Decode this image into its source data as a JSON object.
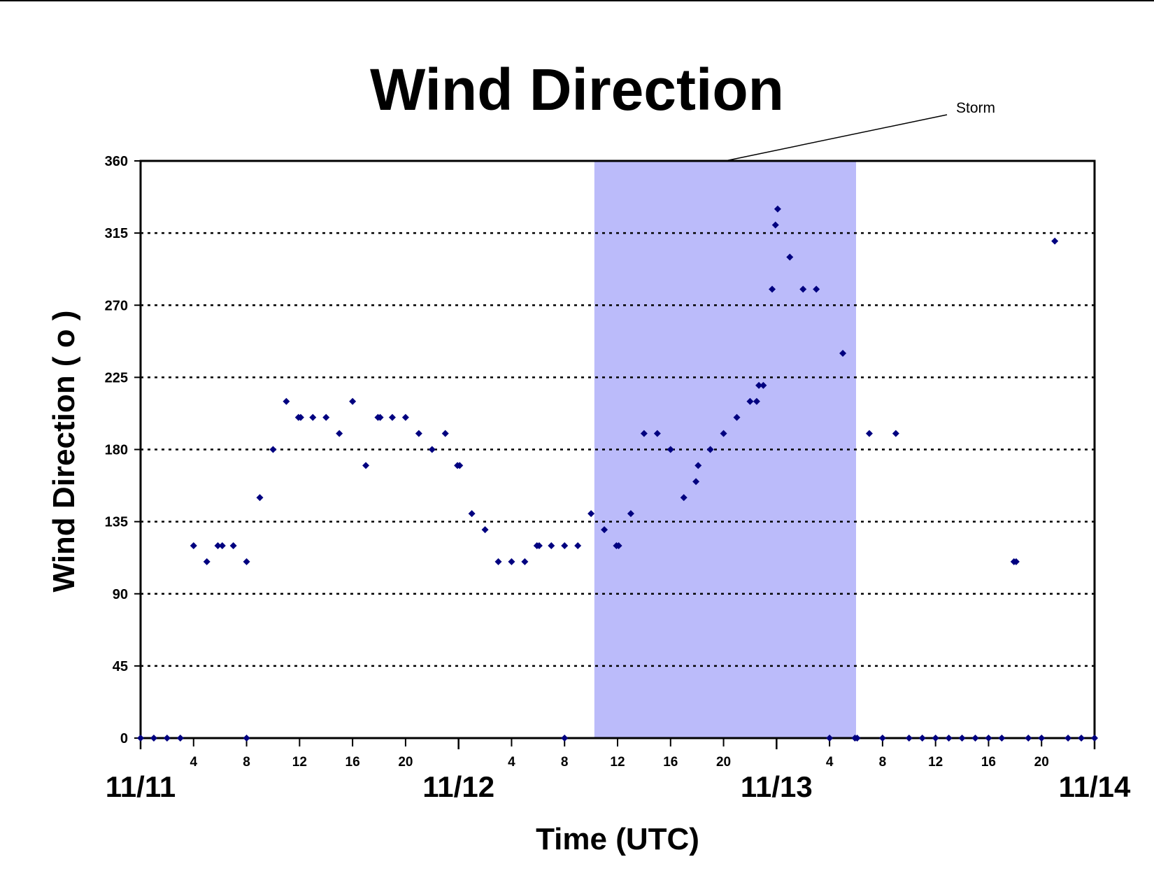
{
  "chart_data": {
    "type": "scatter",
    "title": "Wind Direction",
    "xlabel": "Time (UTC)",
    "ylabel": "Wind Direction ( o )",
    "ylim": [
      0,
      360
    ],
    "xlim": [
      "11/11 00:00",
      "11/14 00:00"
    ],
    "yticks": [
      "0",
      "45",
      "90",
      "135",
      "180",
      "225",
      "270",
      "315",
      "360"
    ],
    "xticks_hour": [
      "4",
      "8",
      "12",
      "16",
      "20",
      "4",
      "8",
      "12",
      "16",
      "20",
      "4",
      "8",
      "12",
      "16",
      "20"
    ],
    "xticks_hour_times": [
      "11/11 04:00",
      "11/11 08:00",
      "11/11 12:00",
      "11/11 16:00",
      "11/11 20:00",
      "11/12 04:00",
      "11/12 08:00",
      "11/12 12:00",
      "11/12 16:00",
      "11/12 20:00",
      "11/13 04:00",
      "11/13 08:00",
      "11/13 12:00",
      "11/13 16:00",
      "11/13 20:00"
    ],
    "xticks_day": [
      "11/11",
      "11/12",
      "11/13",
      "11/14"
    ],
    "xticks_day_times": [
      "11/11 00:00",
      "11/12 00:00",
      "11/13 00:00",
      "11/14 00:00"
    ],
    "grid": "horizontal dotted",
    "shaded_region": {
      "label": "Storm",
      "start": "11/12 10:15",
      "end": "11/13 06:00",
      "color": "#bbbbfa"
    },
    "marker_color": "#000080",
    "series": [
      {
        "points": [
          [
            "11/11 00:00",
            0
          ],
          [
            "11/11 01:00",
            0
          ],
          [
            "11/11 02:00",
            0
          ],
          [
            "11/11 03:00",
            0
          ],
          [
            "11/11 04:00",
            120
          ],
          [
            "11/11 05:00",
            110
          ],
          [
            "11/11 05:50",
            120
          ],
          [
            "11/11 06:10",
            120
          ],
          [
            "11/11 07:00",
            120
          ],
          [
            "11/11 08:00",
            110
          ],
          [
            "11/11 08:00",
            0
          ],
          [
            "11/11 09:00",
            150
          ],
          [
            "11/11 10:00",
            180
          ],
          [
            "11/11 11:00",
            210
          ],
          [
            "11/11 11:55",
            200
          ],
          [
            "11/11 12:05",
            200
          ],
          [
            "11/11 13:00",
            200
          ],
          [
            "11/11 14:00",
            200
          ],
          [
            "11/11 15:00",
            190
          ],
          [
            "11/11 16:00",
            210
          ],
          [
            "11/11 17:00",
            170
          ],
          [
            "11/11 17:55",
            200
          ],
          [
            "11/11 18:05",
            200
          ],
          [
            "11/11 19:00",
            200
          ],
          [
            "11/11 20:00",
            200
          ],
          [
            "11/11 21:00",
            190
          ],
          [
            "11/11 22:00",
            180
          ],
          [
            "11/11 23:00",
            190
          ],
          [
            "11/11 23:55",
            170
          ],
          [
            "11/12 00:05",
            170
          ],
          [
            "11/12 01:00",
            140
          ],
          [
            "11/12 02:00",
            130
          ],
          [
            "11/12 03:00",
            110
          ],
          [
            "11/12 04:00",
            110
          ],
          [
            "11/12 05:00",
            110
          ],
          [
            "11/12 05:55",
            120
          ],
          [
            "11/12 06:05",
            120
          ],
          [
            "11/12 07:00",
            120
          ],
          [
            "11/12 08:00",
            120
          ],
          [
            "11/12 08:00",
            0
          ],
          [
            "11/12 09:00",
            120
          ],
          [
            "11/12 10:00",
            140
          ],
          [
            "11/12 11:00",
            130
          ],
          [
            "11/12 11:55",
            120
          ],
          [
            "11/12 12:05",
            120
          ],
          [
            "11/12 13:00",
            140
          ],
          [
            "11/12 14:00",
            190
          ],
          [
            "11/12 15:00",
            190
          ],
          [
            "11/12 16:00",
            180
          ],
          [
            "11/12 17:00",
            150
          ],
          [
            "11/12 17:55",
            160
          ],
          [
            "11/12 18:05",
            170
          ],
          [
            "11/12 19:00",
            180
          ],
          [
            "11/12 20:00",
            190
          ],
          [
            "11/12 21:00",
            200
          ],
          [
            "11/12 22:00",
            210
          ],
          [
            "11/12 22:30",
            210
          ],
          [
            "11/12 22:40",
            220
          ],
          [
            "11/12 23:00",
            220
          ],
          [
            "11/12 23:40",
            280
          ],
          [
            "11/12 23:55",
            320
          ],
          [
            "11/13 00:05",
            330
          ],
          [
            "11/13 01:00",
            300
          ],
          [
            "11/13 02:00",
            280
          ],
          [
            "11/13 03:00",
            280
          ],
          [
            "11/13 04:00",
            0
          ],
          [
            "11/13 05:00",
            240
          ],
          [
            "11/13 05:55",
            0
          ],
          [
            "11/13 06:05",
            0
          ],
          [
            "11/13 07:00",
            190
          ],
          [
            "11/13 08:00",
            0
          ],
          [
            "11/13 09:00",
            190
          ],
          [
            "11/13 10:00",
            0
          ],
          [
            "11/13 11:00",
            0
          ],
          [
            "11/13 12:00",
            0
          ],
          [
            "11/13 13:00",
            0
          ],
          [
            "11/13 14:00",
            0
          ],
          [
            "11/13 15:00",
            0
          ],
          [
            "11/13 16:00",
            0
          ],
          [
            "11/13 17:00",
            0
          ],
          [
            "11/13 17:55",
            110
          ],
          [
            "11/13 18:05",
            110
          ],
          [
            "11/13 19:00",
            0
          ],
          [
            "11/13 20:00",
            0
          ],
          [
            "11/13 21:00",
            310
          ],
          [
            "11/13 22:00",
            0
          ],
          [
            "11/13 23:00",
            0
          ],
          [
            "11/14 00:00",
            0
          ]
        ]
      }
    ]
  }
}
